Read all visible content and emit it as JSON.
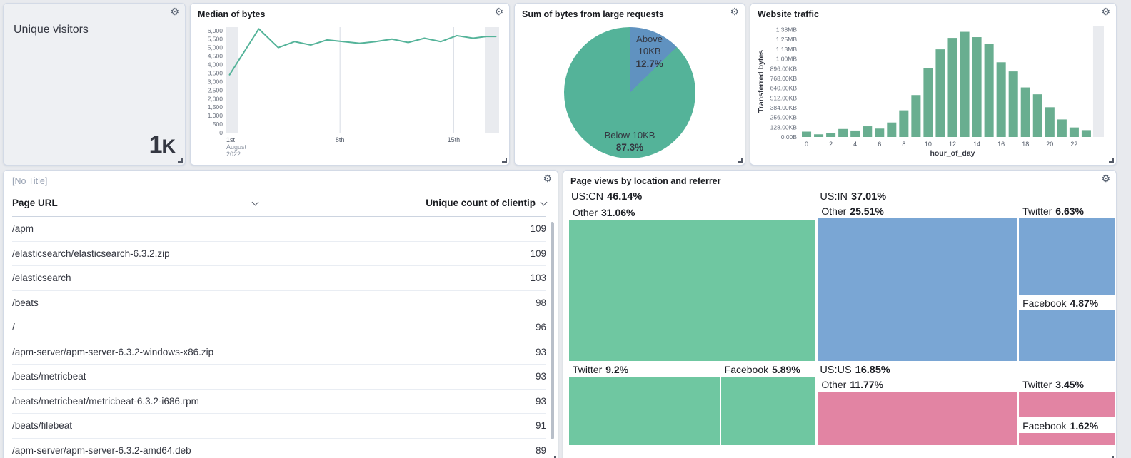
{
  "icons": {
    "gear": "⚙"
  },
  "panels": {
    "unique_visitors": {
      "title": "Unique visitors",
      "value": "1",
      "suffix": "K"
    },
    "median_of_bytes": {
      "title": "Median of bytes"
    },
    "large_requests": {
      "title": "Sum of bytes from large requests"
    },
    "website_traffic": {
      "title": "Website traffic"
    },
    "page_table": {
      "title": "[No Title]",
      "columns": [
        {
          "label": "Page URL"
        },
        {
          "label": "Unique count of clientip"
        }
      ],
      "rows": [
        {
          "url": "/apm",
          "count": "109"
        },
        {
          "url": "/elasticsearch/elasticsearch-6.3.2.zip",
          "count": "109"
        },
        {
          "url": "/elasticsearch",
          "count": "103"
        },
        {
          "url": "/beats",
          "count": "98"
        },
        {
          "url": "/",
          "count": "96"
        },
        {
          "url": "/apm-server/apm-server-6.3.2-windows-x86.zip",
          "count": "93"
        },
        {
          "url": "/beats/metricbeat",
          "count": "93"
        },
        {
          "url": "/beats/metricbeat/metricbeat-6.3.2-i686.rpm",
          "count": "93"
        },
        {
          "url": "/beats/filebeat",
          "count": "91"
        },
        {
          "url": "/apm-server/apm-server-6.3.2-amd64.deb",
          "count": "89"
        }
      ]
    },
    "treemap_panel": {
      "title": "Page views by location and referrer"
    }
  },
  "chart_data": {
    "median_of_bytes": {
      "type": "line",
      "title": "Median of bytes",
      "color": "#54b399",
      "ylim": [
        0,
        6200
      ],
      "yticks": [
        0,
        500,
        1000,
        1500,
        2000,
        2500,
        3000,
        3500,
        4000,
        4500,
        5000,
        5500,
        6000
      ],
      "xticks": [
        {
          "day": 1,
          "label": "1st",
          "sub": [
            "August",
            "2022"
          ]
        },
        {
          "day": 8,
          "label": "8th"
        },
        {
          "day": 15,
          "label": "15th"
        }
      ],
      "x_range": [
        1,
        17.8
      ],
      "x_days": [
        1.2,
        3.0,
        4.2,
        5.2,
        6.2,
        7.2,
        8.2,
        9.2,
        10.2,
        11.2,
        12.2,
        13.2,
        14.2,
        15.2,
        16.2,
        17.0,
        17.6
      ],
      "values": [
        3400,
        6100,
        5000,
        5350,
        5150,
        5450,
        5350,
        5250,
        5350,
        5500,
        5300,
        5550,
        5350,
        5700,
        5550,
        5650,
        5650
      ],
      "partial_band_color": "#e9ebef"
    },
    "bytes_pie": {
      "type": "pie",
      "title": "Sum of bytes from large requests",
      "slices": [
        {
          "label": "Above 10KB",
          "pct": "12.7%",
          "value": 12.7,
          "color": "#6092c0"
        },
        {
          "label": "Below 10KB",
          "pct": "87.3%",
          "value": 87.3,
          "color": "#54b399"
        }
      ]
    },
    "website_traffic": {
      "type": "bar",
      "title": "Website traffic",
      "color": "#69ae90",
      "xlabel": "hour_of_day",
      "ylabel": "Transferred bytes",
      "ymax_kb": 1460,
      "yticks": [
        {
          "kb": 0,
          "label": "0.00B"
        },
        {
          "kb": 128,
          "label": "128.00KB"
        },
        {
          "kb": 256,
          "label": "256.00KB"
        },
        {
          "kb": 384,
          "label": "384.00KB"
        },
        {
          "kb": 512,
          "label": "512.00KB"
        },
        {
          "kb": 640,
          "label": "640.00KB"
        },
        {
          "kb": 768,
          "label": "768.00KB"
        },
        {
          "kb": 896,
          "label": "896.00KB"
        },
        {
          "kb": 1024,
          "label": "1.00MB"
        },
        {
          "kb": 1152,
          "label": "1.13MB"
        },
        {
          "kb": 1280,
          "label": "1.25MB"
        },
        {
          "kb": 1408,
          "label": "1.38MB"
        }
      ],
      "hours": [
        0,
        1,
        2,
        3,
        4,
        5,
        6,
        7,
        8,
        9,
        10,
        11,
        12,
        13,
        14,
        15,
        16,
        17,
        18,
        19,
        20,
        21,
        22,
        23
      ],
      "values_kb": [
        70,
        35,
        55,
        105,
        85,
        140,
        110,
        190,
        350,
        550,
        900,
        1150,
        1300,
        1380,
        1310,
        1220,
        980,
        860,
        650,
        560,
        390,
        230,
        125,
        90
      ],
      "partial_band_color": "#e9ebef"
    },
    "treemap": {
      "type": "treemap",
      "title": "Page views by location and referrer",
      "groups": [
        {
          "name": "US:CN",
          "pct": "46.14%",
          "color": "#6fc7a1",
          "cells": [
            {
              "name": "Other",
              "pct": "31.06%"
            },
            {
              "name": "Twitter",
              "pct": "9.2%"
            },
            {
              "name": "Facebook",
              "pct": "5.89%"
            }
          ]
        },
        {
          "name": "US:IN",
          "pct": "37.01%",
          "color": "#7aa6d4",
          "cells": [
            {
              "name": "Other",
              "pct": "25.51%"
            },
            {
              "name": "Twitter",
              "pct": "6.63%"
            },
            {
              "name": "Facebook",
              "pct": "4.87%"
            }
          ]
        },
        {
          "name": "US:US",
          "pct": "16.85%",
          "color": "#e284a3",
          "cells": [
            {
              "name": "Other",
              "pct": "11.77%"
            },
            {
              "name": "Twitter",
              "pct": "3.45%"
            },
            {
              "name": "Facebook",
              "pct": "1.62%"
            }
          ]
        }
      ]
    }
  }
}
